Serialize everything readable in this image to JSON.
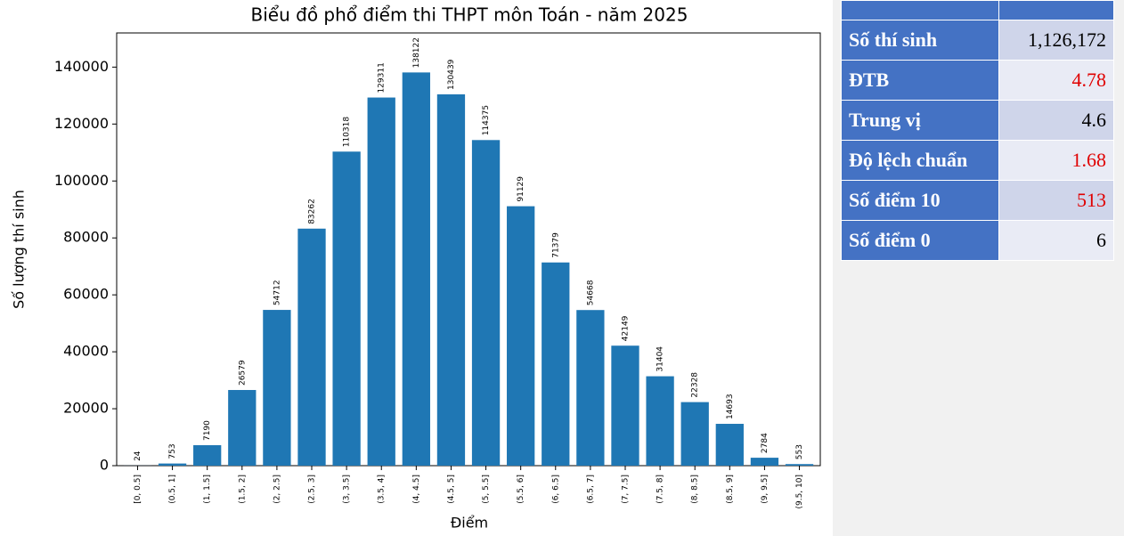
{
  "chart_data": {
    "type": "bar",
    "title": "Biểu đồ phổ điểm thi THPT môn Toán - năm 2025",
    "x_label": "Điểm",
    "y_label": "Số lượng thí sinh",
    "categories": [
      "[0, 0.5]",
      "(0.5, 1]",
      "(1, 1.5]",
      "(1.5, 2]",
      "(2, 2.5]",
      "(2.5, 3]",
      "(3, 3.5]",
      "(3.5, 4]",
      "(4, 4.5]",
      "(4.5, 5]",
      "(5, 5.5]",
      "(5.5, 6]",
      "(6, 6.5]",
      "(6.5, 7]",
      "(7, 7.5]",
      "(7.5, 8]",
      "(8, 8.5]",
      "(8.5, 9]",
      "(9, 9.5]",
      "(9.5, 10]"
    ],
    "values": [
      24,
      753,
      7190,
      26579,
      54712,
      83262,
      110318,
      129311,
      138122,
      130439,
      114375,
      91129,
      71379,
      54668,
      42149,
      31404,
      22328,
      14693,
      2784,
      553
    ],
    "color": "#1f77b4",
    "ylim": [
      0,
      152000
    ],
    "yticks": [
      0,
      20000,
      40000,
      60000,
      80000,
      100000,
      120000,
      140000
    ]
  },
  "table": {
    "rows": [
      {
        "label": "Số thí sinh",
        "value": "1,126,172",
        "color": "#000000"
      },
      {
        "label": "ĐTB",
        "value": "4.78",
        "color": "#e00000"
      },
      {
        "label": "Trung vị",
        "value": "4.6",
        "color": "#000000"
      },
      {
        "label": "Độ lệch chuẩn",
        "value": "1.68",
        "color": "#e00000"
      },
      {
        "label": "Số điểm 10",
        "value": "513",
        "color": "#e00000"
      },
      {
        "label": "Số điểm 0",
        "value": "6",
        "color": "#000000"
      }
    ]
  }
}
